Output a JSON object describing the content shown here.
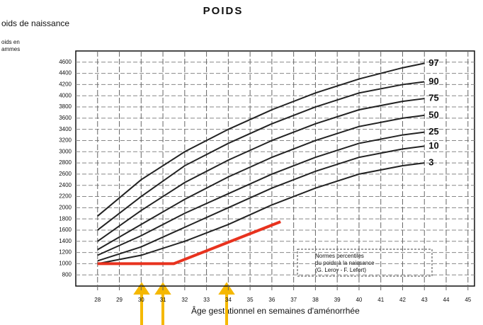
{
  "chart_data": {
    "type": "line",
    "title": "POIDS",
    "subtitle": "oids de naissance",
    "y_label": [
      "oids en",
      "ammes"
    ],
    "x_label": "Âge gestationnel en semaines d'aménorrhée",
    "note": [
      "Normes percentiles",
      "du poids à la naissance",
      "(G. Leroy - F. Lefort)"
    ],
    "x": [
      28,
      30,
      32,
      34,
      36,
      38,
      40,
      42,
      43
    ],
    "xlim": [
      27,
      45.3
    ],
    "xticks": [
      28,
      29,
      30,
      31,
      32,
      33,
      34,
      35,
      36,
      37,
      38,
      39,
      40,
      41,
      42,
      43,
      44,
      45
    ],
    "ylim": [
      600,
      4800
    ],
    "yticks": [
      800,
      1000,
      1200,
      1400,
      1600,
      1800,
      2000,
      2200,
      2400,
      2600,
      2800,
      3000,
      3200,
      3400,
      3600,
      3800,
      4000,
      4200,
      4400,
      4600
    ],
    "grid": true,
    "series": [
      {
        "name": "97",
        "color": "#222",
        "values": [
          1850,
          2500,
          3000,
          3400,
          3750,
          4050,
          4300,
          4500,
          4580
        ]
      },
      {
        "name": "90",
        "color": "#222",
        "values": [
          1600,
          2200,
          2750,
          3150,
          3500,
          3800,
          4050,
          4200,
          4250
        ]
      },
      {
        "name": "75",
        "color": "#222",
        "values": [
          1400,
          1950,
          2450,
          2850,
          3200,
          3500,
          3750,
          3900,
          3950
        ]
      },
      {
        "name": "50",
        "color": "#222",
        "values": [
          1250,
          1700,
          2150,
          2550,
          2900,
          3200,
          3450,
          3600,
          3650
        ]
      },
      {
        "name": "25",
        "color": "#222",
        "values": [
          1150,
          1500,
          1900,
          2250,
          2600,
          2900,
          3150,
          3300,
          3350
        ]
      },
      {
        "name": "10",
        "color": "#222",
        "values": [
          1050,
          1300,
          1650,
          2000,
          2350,
          2650,
          2900,
          3050,
          3100
        ]
      },
      {
        "name": "3",
        "color": "#222",
        "values": [
          1000,
          1150,
          1400,
          1700,
          2050,
          2350,
          2600,
          2750,
          2800
        ]
      },
      {
        "x": [
          28,
          31.5,
          36.4
        ],
        "color": "#e8321e",
        "width": 4,
        "values": [
          1000,
          1000,
          1750
        ]
      }
    ]
  }
}
